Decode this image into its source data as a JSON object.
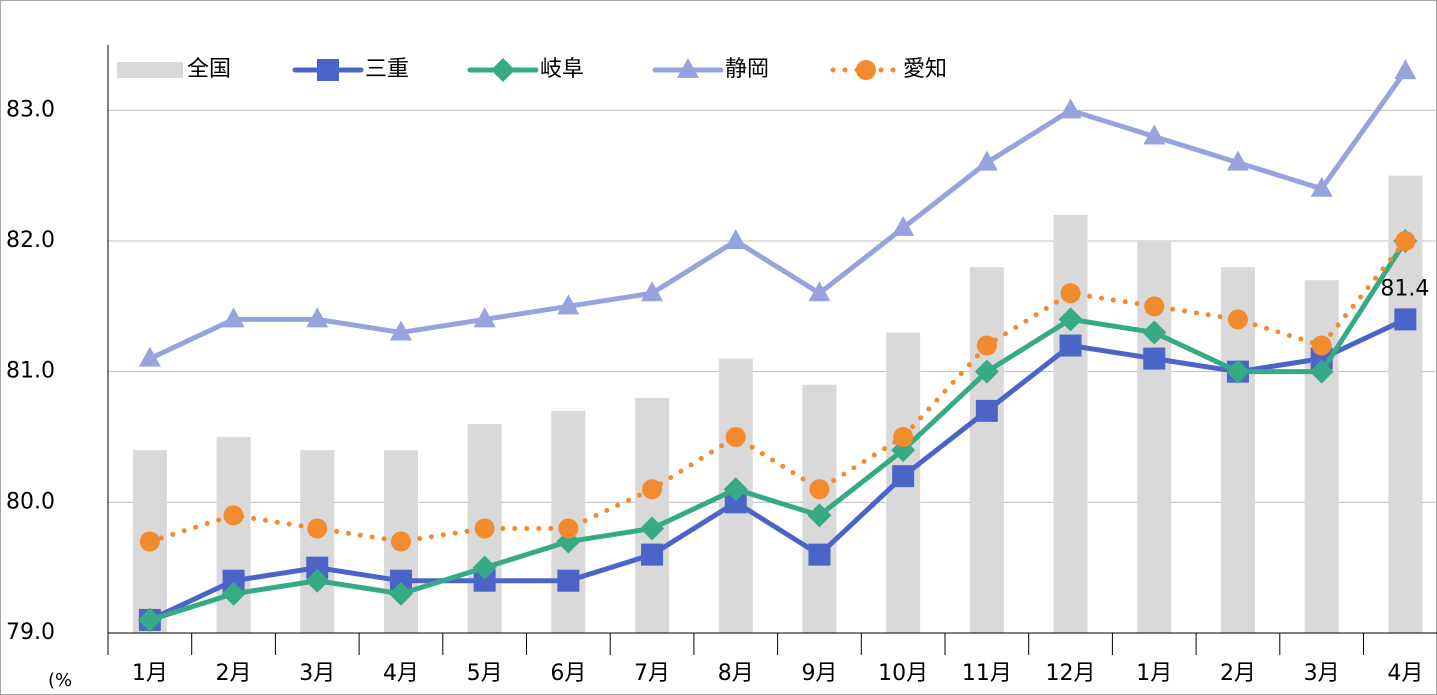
{
  "chart_data": {
    "type": "combo",
    "y_label": "(%",
    "categories": [
      "1月",
      "2月",
      "3月",
      "4月",
      "5月",
      "6月",
      "7月",
      "8月",
      "9月",
      "10月",
      "11月",
      "12月",
      "1月",
      "2月",
      "3月",
      "4月"
    ],
    "series": [
      {
        "name": "全国",
        "type": "bar",
        "color": "#d9d9d9",
        "values": [
          80.4,
          80.5,
          80.4,
          80.4,
          80.6,
          80.7,
          80.8,
          81.1,
          80.9,
          81.3,
          81.8,
          82.2,
          82.0,
          81.8,
          81.7,
          82.5
        ]
      },
      {
        "name": "三重",
        "type": "line",
        "marker": "square",
        "color": "#4a64c8",
        "values": [
          79.1,
          79.4,
          79.5,
          79.4,
          79.4,
          79.4,
          79.6,
          80.0,
          79.6,
          80.2,
          80.7,
          81.2,
          81.1,
          81.0,
          81.1,
          81.4
        ],
        "value_labels": [
          null,
          null,
          null,
          null,
          null,
          null,
          null,
          null,
          null,
          null,
          null,
          null,
          null,
          null,
          null,
          "81.4"
        ]
      },
      {
        "name": "岐阜",
        "type": "line",
        "marker": "diamond",
        "color": "#36a985",
        "values": [
          79.1,
          79.3,
          79.4,
          79.3,
          79.5,
          79.7,
          79.8,
          80.1,
          79.9,
          80.4,
          81.0,
          81.4,
          81.3,
          81.0,
          81.0,
          82.0
        ]
      },
      {
        "name": "静岡",
        "type": "line",
        "marker": "triangle",
        "color": "#97a3de",
        "values": [
          81.1,
          81.4,
          81.4,
          81.3,
          81.4,
          81.5,
          81.6,
          82.0,
          81.6,
          82.1,
          82.6,
          83.0,
          82.8,
          82.6,
          82.4,
          83.3
        ]
      },
      {
        "name": "愛知",
        "type": "line",
        "marker": "circle",
        "dash": "dotted",
        "color": "#f28a2e",
        "values": [
          79.7,
          79.9,
          79.8,
          79.7,
          79.8,
          79.8,
          80.1,
          80.5,
          80.1,
          80.5,
          81.2,
          81.6,
          81.5,
          81.4,
          81.2,
          82.0
        ]
      }
    ],
    "ylim": [
      79,
      83.5
    ],
    "yticks": [
      {
        "value": 79,
        "label": "79.0"
      },
      {
        "value": 80,
        "label": "80.0"
      },
      {
        "value": 81,
        "label": "81.0"
      },
      {
        "value": 82,
        "label": "82.0"
      },
      {
        "value": 83,
        "label": "83.0"
      }
    ],
    "grid": true
  }
}
